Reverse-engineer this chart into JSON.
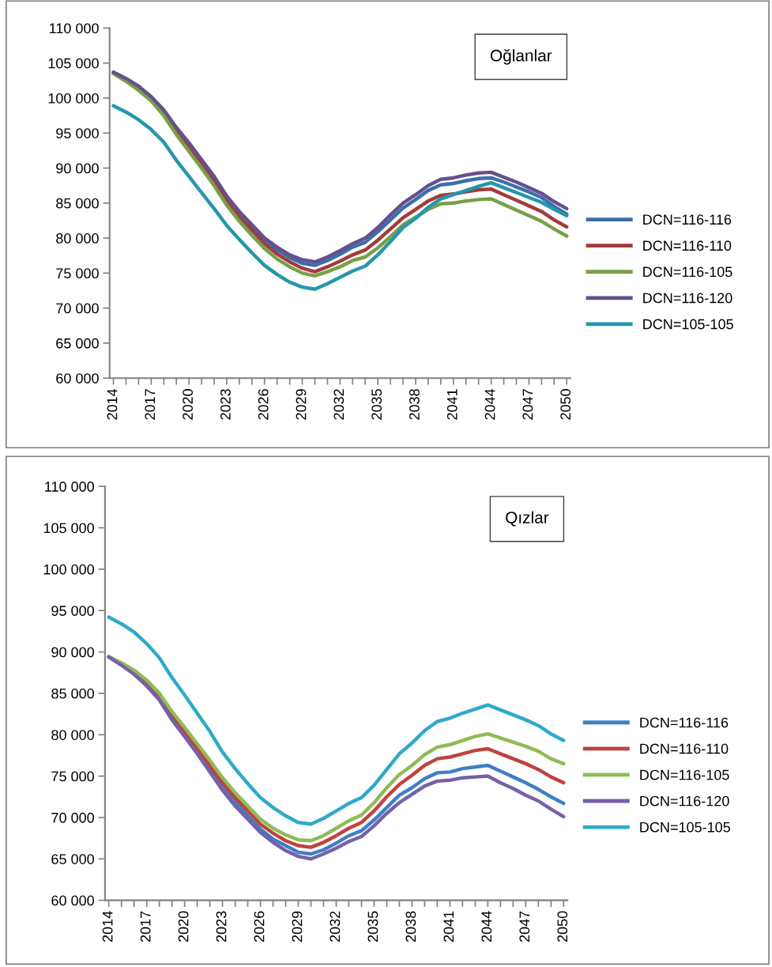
{
  "chart_data": [
    {
      "type": "line",
      "title": "Oğlanlar",
      "legend": "right",
      "grid": false,
      "marker": "none",
      "line_style": "solid",
      "categories": [
        "2014",
        null,
        null,
        "2017",
        null,
        null,
        "2020",
        null,
        null,
        "2023",
        null,
        null,
        "2026",
        null,
        null,
        "2029",
        null,
        null,
        "2032",
        null,
        null,
        "2035",
        null,
        null,
        "2038",
        null,
        null,
        "2041",
        null,
        null,
        "2044",
        null,
        null,
        "2047",
        null,
        null,
        "2050"
      ],
      "ylim": [
        60000,
        110000
      ],
      "yticks": [
        {
          "value": 60000,
          "label": "60 000"
        },
        {
          "value": 65000,
          "label": "65 000"
        },
        {
          "value": 70000,
          "label": "70 000"
        },
        {
          "value": 75000,
          "label": "75 000"
        },
        {
          "value": 80000,
          "label": "80 000"
        },
        {
          "value": 85000,
          "label": "85 000"
        },
        {
          "value": 90000,
          "label": "90 000"
        },
        {
          "value": 95000,
          "label": "95 000"
        },
        {
          "value": 100000,
          "label": "100 000"
        },
        {
          "value": 105000,
          "label": "105 000"
        },
        {
          "value": 110000,
          "label": "110 000"
        }
      ],
      "series": [
        {
          "name": "DCN=116-116",
          "color": "#3a6fa8",
          "values": [
            103600,
            102700,
            101600,
            100100,
            98200,
            95700,
            93400,
            91000,
            88600,
            85800,
            83500,
            81600,
            79700,
            78300,
            77200,
            76400,
            76100,
            76800,
            77700,
            78700,
            79400,
            80900,
            82600,
            84300,
            85500,
            86800,
            87600,
            87800,
            88200,
            88500,
            88600,
            88000,
            87300,
            86600,
            85800,
            84500,
            83400
          ]
        },
        {
          "name": "DCN=116-110",
          "color": "#a23b3b",
          "values": [
            null,
            null,
            null,
            99900,
            97900,
            95300,
            93000,
            90600,
            88100,
            85300,
            83000,
            81100,
            79200,
            77700,
            76600,
            75700,
            75200,
            75900,
            76700,
            77600,
            78300,
            79700,
            81300,
            82900,
            84100,
            85300,
            86100,
            86300,
            86600,
            86900,
            87000,
            86200,
            85400,
            84600,
            83800,
            82600,
            81600
          ]
        },
        {
          "name": "DCN=116-105",
          "color": "#77a047",
          "values": [
            103500,
            102400,
            101100,
            99600,
            97500,
            94800,
            92400,
            90000,
            87500,
            84700,
            82400,
            80400,
            78500,
            77000,
            75900,
            75000,
            74600,
            75200,
            75900,
            76800,
            77300,
            78600,
            80200,
            81900,
            83000,
            84100,
            84900,
            85000,
            85300,
            85500,
            85600,
            84800,
            84000,
            83200,
            82400,
            81300,
            80300
          ]
        },
        {
          "name": "DCN=116-120",
          "color": "#65508f",
          "values": [
            103700,
            102800,
            101700,
            100200,
            98300,
            95800,
            93600,
            91200,
            88800,
            86000,
            83800,
            81900,
            80000,
            78700,
            77600,
            76900,
            76600,
            77300,
            78200,
            79200,
            80000,
            81500,
            83300,
            85000,
            86200,
            87500,
            88400,
            88600,
            89000,
            89300,
            89400,
            88700,
            88000,
            87200,
            86400,
            85200,
            84200
          ]
        },
        {
          "name": "DCN=105-105",
          "color": "#2596ad",
          "values": [
            98900,
            98000,
            96900,
            95500,
            93700,
            91100,
            88800,
            86500,
            84200,
            81800,
            79800,
            77900,
            76100,
            74800,
            73700,
            73000,
            72700,
            73500,
            74400,
            75300,
            76000,
            77600,
            79500,
            81500,
            82800,
            84400,
            85600,
            86200,
            86800,
            87400,
            87900,
            87200,
            86500,
            85800,
            85100,
            84100,
            83200
          ]
        }
      ]
    },
    {
      "type": "line",
      "title": "Qızlar",
      "legend": "right",
      "grid": false,
      "marker": "none",
      "line_style": "solid",
      "categories": [
        "2014",
        null,
        null,
        "2017",
        null,
        null,
        "2020",
        null,
        null,
        "2023",
        null,
        null,
        "2026",
        null,
        null,
        "2029",
        null,
        null,
        "2032",
        null,
        null,
        "2035",
        null,
        null,
        "2038",
        null,
        null,
        "2041",
        null,
        null,
        "2044",
        null,
        null,
        "2047",
        null,
        null,
        "2050"
      ],
      "ylim": [
        60000,
        110000
      ],
      "yticks": [
        {
          "value": 60000,
          "label": "60 000"
        },
        {
          "value": 65000,
          "label": "65 000"
        },
        {
          "value": 70000,
          "label": "70 000"
        },
        {
          "value": 75000,
          "label": "75 000"
        },
        {
          "value": 80000,
          "label": "80 000"
        },
        {
          "value": 85000,
          "label": "85 000"
        },
        {
          "value": 90000,
          "label": "90 000"
        },
        {
          "value": 95000,
          "label": "95 000"
        },
        {
          "value": 100000,
          "label": "100 000"
        },
        {
          "value": 105000,
          "label": "105 000"
        },
        {
          "value": 110000,
          "label": "110 000"
        }
      ],
      "series": [
        {
          "name": "DCN=116-116",
          "color": "#3f7fc4",
          "values": [
            89400,
            88500,
            87500,
            86100,
            84400,
            82100,
            80100,
            78000,
            75900,
            73700,
            71900,
            70200,
            68600,
            67400,
            66600,
            65800,
            65600,
            66100,
            66900,
            67800,
            68400,
            69700,
            71200,
            72700,
            73600,
            74700,
            75400,
            75500,
            75900,
            76100,
            76300,
            75600,
            74900,
            74200,
            73400,
            72500,
            71700
          ]
        },
        {
          "name": "DCN=116-110",
          "color": "#c0423f",
          "values": [
            89400,
            88600,
            87600,
            86300,
            84700,
            82400,
            80500,
            78400,
            76300,
            74200,
            72400,
            70800,
            69200,
            68100,
            67200,
            66600,
            66400,
            67000,
            67800,
            68700,
            69400,
            70800,
            72500,
            74000,
            75100,
            76300,
            77100,
            77300,
            77700,
            78100,
            78300,
            77700,
            77100,
            76500,
            75800,
            74900,
            74200
          ]
        },
        {
          "name": "DCN=116-105",
          "color": "#8fbb55",
          "values": [
            89400,
            88700,
            87800,
            86600,
            85000,
            82800,
            80900,
            78900,
            76900,
            74800,
            73000,
            71400,
            69800,
            68700,
            67900,
            67300,
            67200,
            67800,
            68700,
            69600,
            70300,
            71800,
            73600,
            75200,
            76300,
            77600,
            78500,
            78800,
            79300,
            79800,
            80100,
            79600,
            79100,
            78600,
            78000,
            77100,
            76500
          ]
        },
        {
          "name": "DCN=116-120",
          "color": "#7561a8",
          "values": [
            89400,
            88400,
            87300,
            85900,
            84200,
            81800,
            79800,
            77700,
            75500,
            73300,
            71400,
            69800,
            68200,
            67000,
            66000,
            65300,
            65000,
            65600,
            66300,
            67100,
            67700,
            69000,
            70500,
            71800,
            72800,
            73800,
            74400,
            74500,
            74800,
            74900,
            75000,
            74200,
            73500,
            72700,
            72000,
            71000,
            70100
          ]
        },
        {
          "name": "DCN=105-105",
          "color": "#2eaac8",
          "values": [
            94200,
            93400,
            92400,
            91000,
            89300,
            86900,
            84800,
            82600,
            80400,
            77900,
            75900,
            74100,
            72400,
            71200,
            70200,
            69400,
            69200,
            69900,
            70800,
            71700,
            72400,
            73900,
            75800,
            77700,
            79000,
            80500,
            81600,
            82000,
            82600,
            83100,
            83600,
            83000,
            82400,
            81800,
            81100,
            80100,
            79300
          ]
        }
      ]
    }
  ]
}
